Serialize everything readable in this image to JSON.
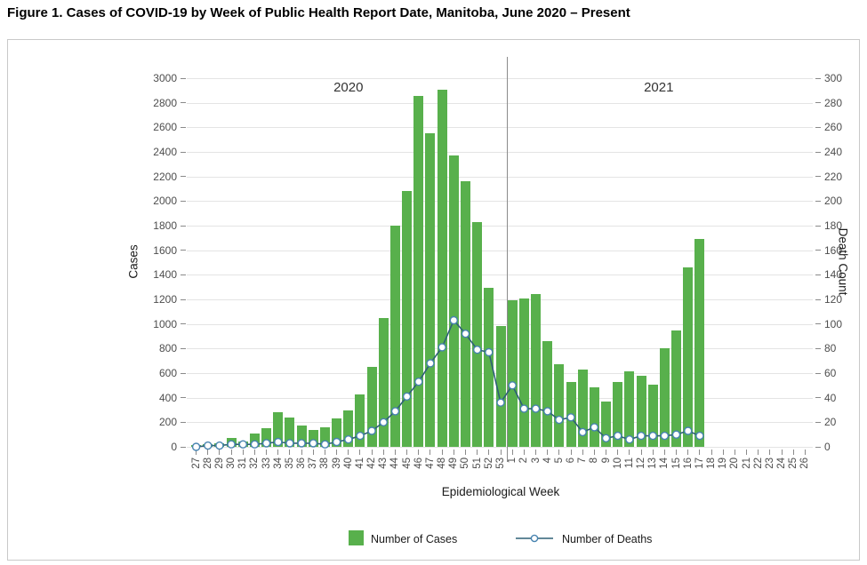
{
  "figure": {
    "title": "Figure 1. Cases of COVID-19 by Week of Public Health Report Date, Manitoba, June 2020 – Present"
  },
  "chart_data": {
    "type": "bar",
    "title": "Figure 1. Cases of COVID-19 by Week of Public Health Report Date, Manitoba, June 2020 – Present",
    "xlabel": "Epidemiological Week",
    "y_left": {
      "label": "Cases",
      "min": 0,
      "max": 3000,
      "step": 200
    },
    "y_right": {
      "label": "Death Count",
      "min": 0,
      "max": 300,
      "step": 20
    },
    "grid": "horizontal-only",
    "legend_position": "bottom-center",
    "year_annotations": [
      {
        "label": "2020",
        "week_span": [
          "27",
          "53"
        ]
      },
      {
        "label": "2021",
        "week_span": [
          "1",
          "26"
        ]
      }
    ],
    "categories": [
      "27",
      "28",
      "29",
      "30",
      "31",
      "32",
      "33",
      "34",
      "35",
      "36",
      "37",
      "38",
      "39",
      "40",
      "41",
      "42",
      "43",
      "44",
      "45",
      "46",
      "47",
      "48",
      "49",
      "50",
      "51",
      "52",
      "53",
      "1",
      "2",
      "3",
      "4",
      "5",
      "6",
      "7",
      "8",
      "9",
      "10",
      "11",
      "12",
      "13",
      "14",
      "15",
      "16",
      "17",
      "18",
      "19",
      "20",
      "21",
      "22",
      "23",
      "24",
      "25",
      "26"
    ],
    "series": [
      {
        "name": "Number of Cases",
        "type": "bar",
        "axis": "left",
        "color": "#58b04c",
        "values": [
          15,
          20,
          30,
          70,
          45,
          105,
          150,
          280,
          240,
          170,
          140,
          160,
          230,
          300,
          430,
          650,
          1050,
          1800,
          2080,
          2855,
          2555,
          2905,
          2370,
          2165,
          1830,
          1295,
          980,
          1190,
          1205,
          1240,
          860,
          670,
          530,
          630,
          485,
          370,
          530,
          615,
          580,
          505,
          800,
          945,
          1460,
          1690,
          null,
          null,
          null,
          null,
          null,
          null,
          null,
          null,
          null
        ]
      },
      {
        "name": "Number of Deaths",
        "type": "line",
        "axis": "right",
        "line_color": "#2e6077",
        "marker": {
          "shape": "circle",
          "fill": "#ffffff",
          "stroke": "#4783b0"
        },
        "values": [
          0,
          1,
          1,
          2,
          2,
          2,
          3,
          4,
          3,
          3,
          3,
          2,
          4,
          6,
          9,
          13,
          20,
          29,
          41,
          53,
          68,
          81,
          103,
          92,
          79,
          77,
          36,
          50,
          31,
          31,
          29,
          22,
          24,
          12,
          16,
          7,
          9,
          6,
          9,
          9,
          9,
          10,
          13,
          9,
          null,
          null,
          null,
          null,
          null,
          null,
          null,
          null,
          null
        ]
      }
    ],
    "divider_after_category_index": 26,
    "legend": [
      {
        "label": "Number of Cases",
        "swatch": "green-square"
      },
      {
        "label": "Number of Deaths",
        "swatch": "blue-line-open-circle"
      }
    ],
    "colors": {
      "bar": "#58b04c",
      "death_line": "#2e6077",
      "marker_ring": "#4783b0",
      "gridline": "#e4e4e4",
      "divider": "#8c8c8c",
      "tick_text": "#4d4d4d"
    }
  }
}
